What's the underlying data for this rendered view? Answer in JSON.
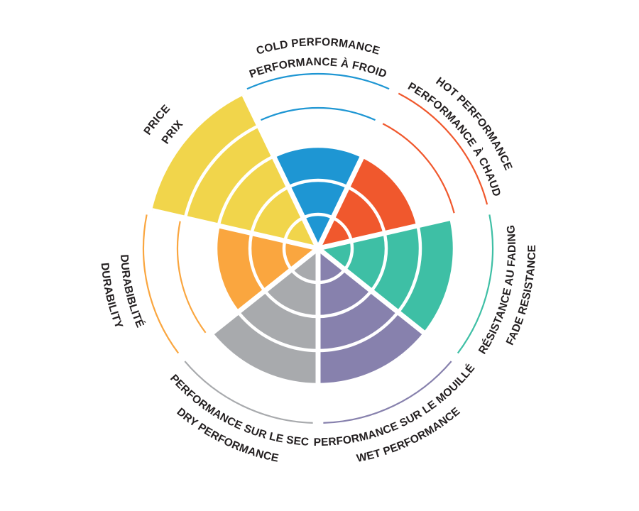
{
  "chart_data": {
    "type": "polar-sector-wheel",
    "title": "",
    "ring_count": 5,
    "max_value": 5,
    "direction": "clockwise-from-top",
    "background_color": "#ffffff",
    "label_color": "#231f20",
    "grid_color": "#ffffff",
    "legend_position": "none",
    "notes": "thin colored arcs mark unfilled ring levels 4 and 5; English label outer line, French label inner line",
    "categories": [
      {
        "id": "cold-performance",
        "label_en": "COLD PERFORMANCE",
        "label_fr": "PERFORMANCE À FROID",
        "value": 3,
        "color": "#1e96d3",
        "label_flipped": false
      },
      {
        "id": "hot-performance",
        "label_en": "HOT PERFORMANCE",
        "label_fr": "PERFORMANCE À CHAUD",
        "value": 3,
        "color": "#f0582d",
        "label_flipped": false
      },
      {
        "id": "fade-resistance",
        "label_en": "FADE RESISTANCE",
        "label_fr": "RÉSISTANCE AU FADING",
        "value": 4,
        "color": "#3ebfa5",
        "label_flipped": true
      },
      {
        "id": "wet-performance",
        "label_en": "WET PERFORMANCE",
        "label_fr": "PERFORMANCE SUR LE MOUILLÉ",
        "value": 4,
        "color": "#8781ad",
        "label_flipped": true
      },
      {
        "id": "dry-performance",
        "label_en": "DRY PERFORMANCE",
        "label_fr": "PERFORMANCE SUR LE SEC",
        "value": 4,
        "color": "#a8aaad",
        "label_flipped": true
      },
      {
        "id": "durability",
        "label_en": "DURABILITY",
        "label_fr": "DURABIBLITÉ",
        "value": 3,
        "color": "#faa63f",
        "label_flipped": true
      },
      {
        "id": "price",
        "label_en": "PRICE",
        "label_fr": "PRIX",
        "value": 5,
        "color": "#f1d54b",
        "label_flipped": false
      }
    ]
  }
}
